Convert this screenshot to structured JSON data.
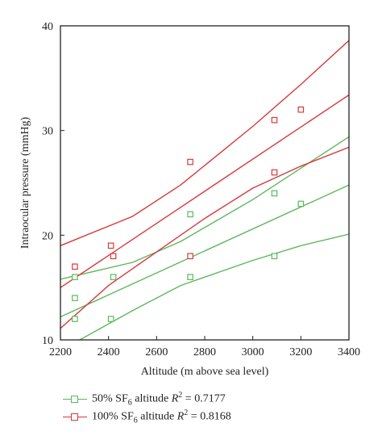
{
  "chart_data": {
    "type": "scatter",
    "title": "",
    "xlabel": "Altitude (m above sea level)",
    "ylabel": "Intraocular pressure (mmHg)",
    "xlim": [
      2200,
      3400
    ],
    "ylim": [
      10,
      40
    ],
    "x_ticks": [
      2200,
      2400,
      2600,
      2800,
      3000,
      3200,
      3400
    ],
    "y_ticks": [
      10,
      20,
      30,
      40
    ],
    "grid": false,
    "legend_position": "bottom",
    "series": [
      {
        "name": "50% SF6 altitude R2 = 0.7177",
        "color": "#5cb85c",
        "marker": "open-square",
        "points": [
          {
            "x": 2260,
            "y": 16
          },
          {
            "x": 2260,
            "y": 14
          },
          {
            "x": 2260,
            "y": 12
          },
          {
            "x": 2410,
            "y": 12
          },
          {
            "x": 2420,
            "y": 16
          },
          {
            "x": 2740,
            "y": 22
          },
          {
            "x": 2740,
            "y": 16
          },
          {
            "x": 3090,
            "y": 24
          },
          {
            "x": 3090,
            "y": 18
          },
          {
            "x": 3200,
            "y": 23
          }
        ],
        "fit_line": [
          [
            2200,
            12.2
          ],
          [
            3400,
            24.8
          ]
        ],
        "ci_upper": [
          [
            2200,
            15.8
          ],
          [
            2500,
            17.4
          ],
          [
            2700,
            19.4
          ],
          [
            3000,
            23.4
          ],
          [
            3200,
            26.4
          ],
          [
            3400,
            29.4
          ]
        ],
        "ci_lower": [
          [
            2280,
            10
          ],
          [
            2500,
            12.8
          ],
          [
            2700,
            15.2
          ],
          [
            3000,
            17.6
          ],
          [
            3200,
            19
          ],
          [
            3400,
            20.1
          ]
        ]
      },
      {
        "name": "100% SF6 altitude R2 = 0.8168",
        "color": "#d9383a",
        "marker": "open-square",
        "points": [
          {
            "x": 2260,
            "y": 17
          },
          {
            "x": 2410,
            "y": 19
          },
          {
            "x": 2420,
            "y": 18
          },
          {
            "x": 2740,
            "y": 27
          },
          {
            "x": 2740,
            "y": 18
          },
          {
            "x": 3090,
            "y": 31
          },
          {
            "x": 3090,
            "y": 26
          },
          {
            "x": 3200,
            "y": 32
          }
        ],
        "fit_line": [
          [
            2200,
            15
          ],
          [
            3400,
            33.4
          ]
        ],
        "ci_upper": [
          [
            2200,
            19
          ],
          [
            2500,
            21.8
          ],
          [
            2700,
            24.8
          ],
          [
            3000,
            30.4
          ],
          [
            3200,
            34.4
          ],
          [
            3400,
            38.6
          ]
        ],
        "ci_lower": [
          [
            2200,
            11.1
          ],
          [
            2400,
            15.2
          ],
          [
            2600,
            18.4
          ],
          [
            2800,
            21.6
          ],
          [
            3000,
            24.5
          ],
          [
            3200,
            26.6
          ],
          [
            3400,
            28.4
          ]
        ]
      }
    ]
  },
  "legend": {
    "items": [
      {
        "prefix": "50% SF",
        "sub": "6",
        "middle": " altitude ",
        "r": "R",
        "sup": "2",
        "suffix": " = 0.7177"
      },
      {
        "prefix": "100% SF",
        "sub": "6",
        "middle": " altitude ",
        "r": "R",
        "sup": "2",
        "suffix": " = 0.8168"
      }
    ]
  }
}
